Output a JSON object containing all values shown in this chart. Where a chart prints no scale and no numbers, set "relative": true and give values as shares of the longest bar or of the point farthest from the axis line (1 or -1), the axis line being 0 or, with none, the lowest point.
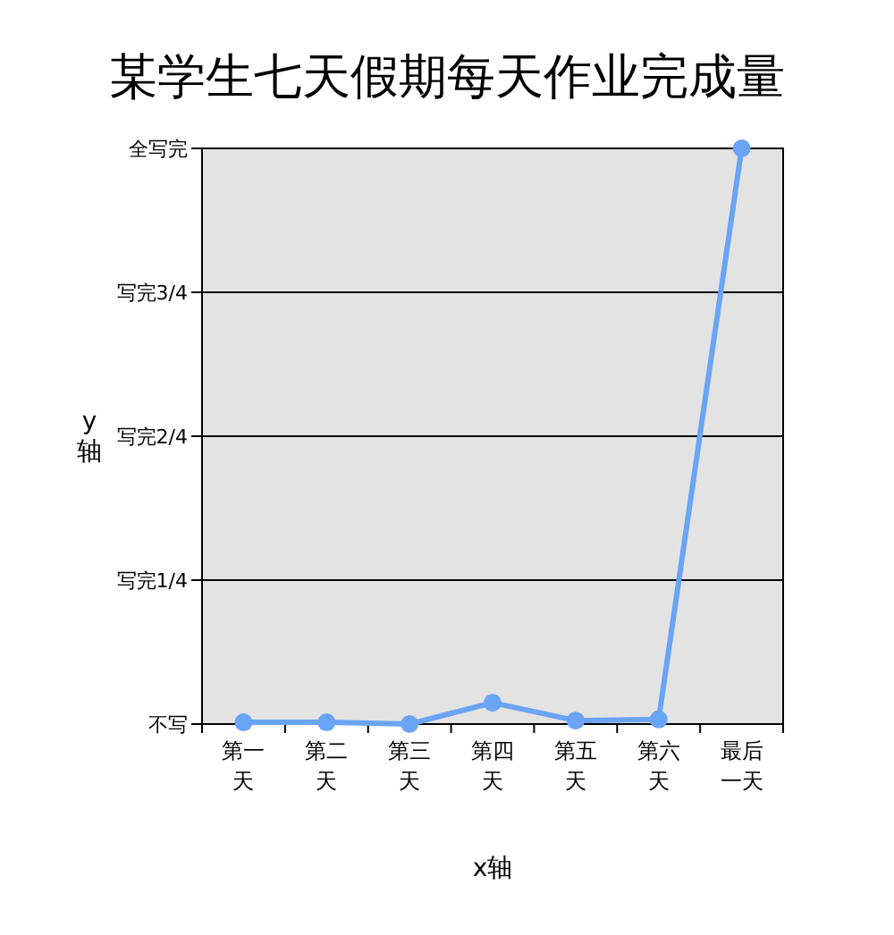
{
  "chart_data": {
    "type": "line",
    "title": "某学生七天假期每天作业完成量",
    "xlabel": "x轴",
    "ylabel": "y轴",
    "categories": [
      "第一天",
      "第二天",
      "第三天",
      "第四天",
      "第五天",
      "第六天",
      "最后一天"
    ],
    "series": [
      {
        "color": "#6aa4f5",
        "values": [
          0.003,
          0.003,
          0.0,
          0.037,
          0.006,
          0.008,
          1
        ]
      }
    ],
    "relative": true,
    "ref_lines": [
      {
        "axis": "y",
        "value": 0,
        "label": "不写",
        "color": "#000000"
      },
      {
        "axis": "y",
        "value": 0.25,
        "label": "写完1/4",
        "color": "#000000"
      },
      {
        "axis": "y",
        "value": 0.5,
        "label": "写完2/4",
        "color": "#000000"
      },
      {
        "axis": "y",
        "value": 0.75,
        "label": "写完3/4",
        "color": "#000000"
      },
      {
        "axis": "y",
        "value": 1,
        "label": "全写完",
        "color": "#000000"
      }
    ],
    "marker": "circle",
    "line_style": "solid"
  }
}
